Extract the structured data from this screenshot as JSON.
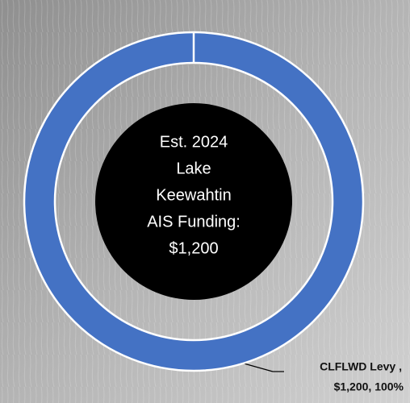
{
  "chart_data": {
    "type": "donut",
    "categories": [
      "CLFLWD Levy ,"
    ],
    "values": [
      1200
    ],
    "value_labels": [
      "$1,200, 100%"
    ],
    "colors": [
      "#4472c4"
    ],
    "center_text": [
      "Est. 2024",
      "Lake",
      "Keewahtin",
      "AIS Funding:",
      "$1,200"
    ]
  }
}
